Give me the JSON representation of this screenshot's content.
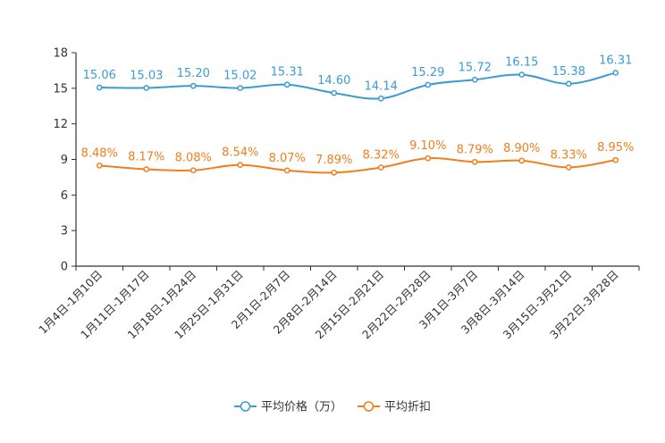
{
  "chart_data": {
    "type": "line",
    "categories": [
      "1月4日-1月10日",
      "1月11日-1月17日",
      "1月18日-1月24日",
      "1月25日-1月31日",
      "2月1日-2月7日",
      "2月8日-2月14日",
      "2月15日-2月21日",
      "2月22日-2月28日",
      "3月1日-3月7日",
      "3月8日-3月14日",
      "3月15日-3月21日",
      "3月22日-3月28日"
    ],
    "ylim": [
      0,
      18
    ],
    "yticks": [
      0,
      3,
      6,
      9,
      12,
      15,
      18
    ],
    "series": [
      {
        "name": "平均价格（万）",
        "color": "#3a9bd5",
        "values": [
          15.06,
          15.03,
          15.2,
          15.02,
          15.31,
          14.6,
          14.14,
          15.29,
          15.72,
          16.15,
          15.38,
          16.31
        ],
        "labels": [
          "15.06",
          "15.03",
          "15.20",
          "15.02",
          "15.31",
          "14.60",
          "14.14",
          "15.29",
          "15.72",
          "16.15",
          "15.38",
          "16.31"
        ]
      },
      {
        "name": "平均折扣",
        "color": "#f27e1c",
        "values": [
          8.48,
          8.17,
          8.08,
          8.54,
          8.07,
          7.89,
          8.32,
          9.1,
          8.79,
          8.9,
          8.33,
          8.95
        ],
        "labels": [
          "8.48%",
          "8.17%",
          "8.08%",
          "8.54%",
          "8.07%",
          "7.89%",
          "8.32%",
          "9.10%",
          "8.79%",
          "8.90%",
          "8.33%",
          "8.95%"
        ]
      }
    ],
    "legend_position": "bottom-center"
  }
}
